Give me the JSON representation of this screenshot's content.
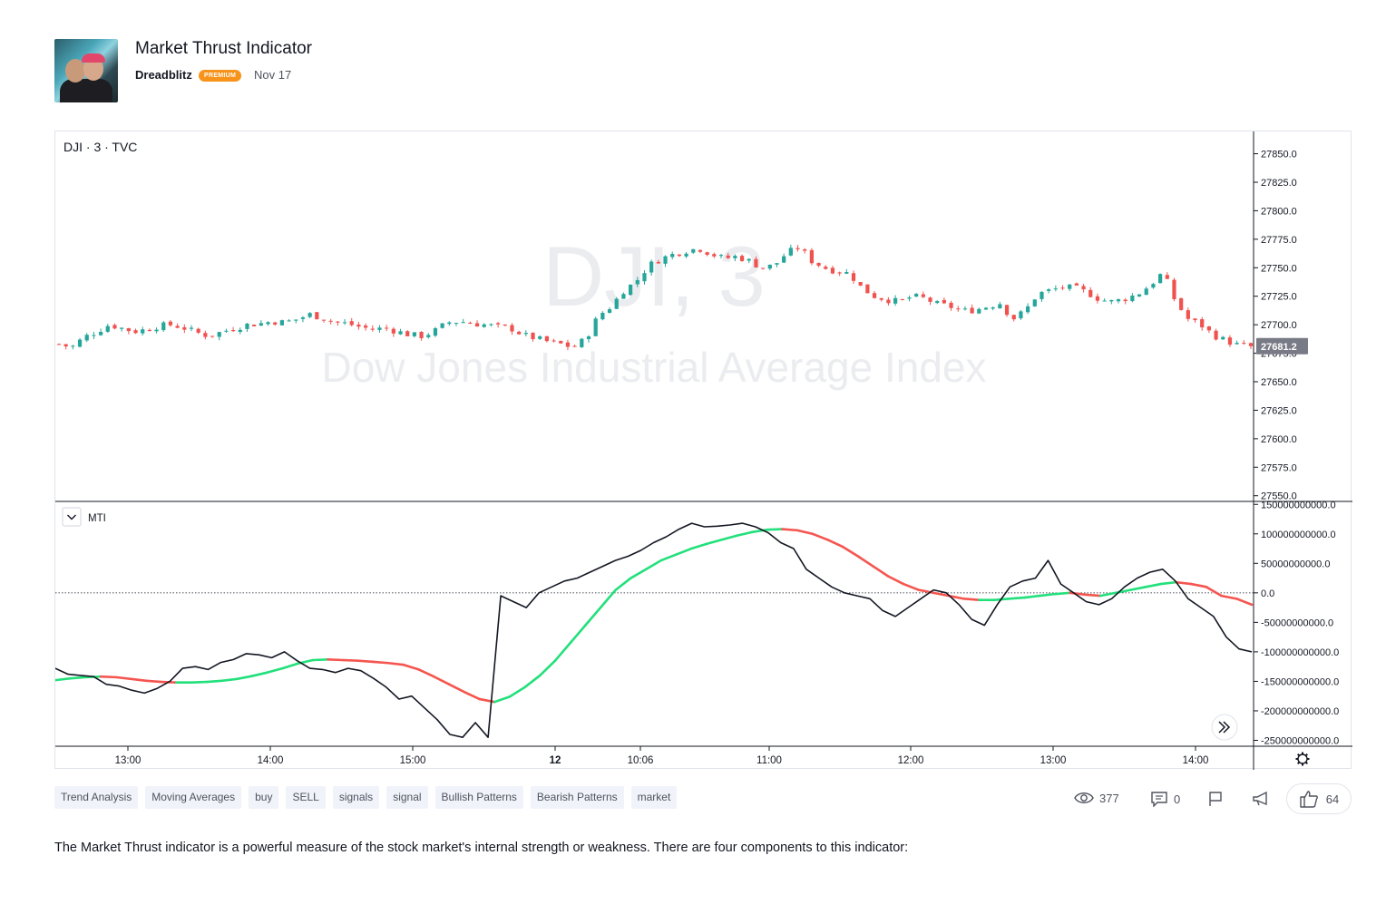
{
  "post": {
    "title": "Market Thrust Indicator",
    "author": "Dreadblitz",
    "badge": "PREMIUM",
    "date": "Nov 17"
  },
  "chart": {
    "symbol_label": "DJI · 3 · TVC",
    "watermark_symbol": "DJI, 3",
    "watermark_name": "Dow Jones Industrial Average Index",
    "indicator_label": "MTI",
    "last_price_label": "27681.2"
  },
  "tags": [
    "Trend Analysis",
    "Moving Averages",
    "buy",
    "SELL",
    "signals",
    "signal",
    "Bullish Patterns",
    "Bearish Patterns",
    "market"
  ],
  "stats": {
    "views": "377",
    "comments": "0",
    "likes": "64"
  },
  "description": "The Market Thrust indicator is a powerful measure of the stock market's internal strength or weakness. There are four components to this indicator:",
  "colors": {
    "up": "#26a69a",
    "down": "#ef5350",
    "ma_up": "#22e07b",
    "ma_down": "#f5554f",
    "mti": "#131722",
    "price_tag": "#787b86"
  },
  "chart_data": [
    {
      "type": "candlestick",
      "title": "DJI · 3 · TVC",
      "y_ticks": [
        "27850.0",
        "27825.0",
        "27800.0",
        "27775.0",
        "27750.0",
        "27725.0",
        "27700.0",
        "27675.0",
        "27650.0",
        "27625.0",
        "27600.0",
        "27575.0",
        "27550.0"
      ],
      "ylim": [
        27545,
        27860
      ],
      "x_ticks": [
        "13:00",
        "14:00",
        "15:00",
        "12",
        "10:06",
        "11:00",
        "12:00",
        "13:00",
        "14:00"
      ],
      "last_value": 27681.2,
      "close_path": [
        27683,
        27680,
        27689,
        27694,
        27700,
        27697,
        27694,
        27696,
        27699,
        27700,
        27697,
        27693,
        27690,
        27694,
        27697,
        27700,
        27701,
        27703,
        27702,
        27705,
        27709,
        27706,
        27702,
        27701,
        27698,
        27696,
        27697,
        27694,
        27691,
        27690,
        27695,
        27702,
        27703,
        27701,
        27700,
        27698,
        27697,
        27691,
        27688,
        27685,
        27683,
        27680,
        27688,
        27708,
        27716,
        27730,
        27738,
        27752,
        27758,
        27762,
        27765,
        27767,
        27762,
        27758,
        27760,
        27756,
        27750,
        27752,
        27763,
        27768,
        27756,
        27750,
        27747,
        27745,
        27732,
        27725,
        27722,
        27720,
        27725,
        27723,
        27718,
        27716,
        27712,
        27713,
        27716,
        27719,
        27705,
        27712,
        27727,
        27730,
        27733,
        27732,
        27728,
        27722,
        27720,
        27723,
        27727,
        27735,
        27746,
        27720,
        27705,
        27700,
        27691,
        27686,
        27682,
        27681.2
      ]
    },
    {
      "type": "line",
      "title": "MTI",
      "y_ticks": [
        "150000000000.0",
        "100000000000.0",
        "50000000000.0",
        "0.0",
        "-50000000000.0",
        "-100000000000.0",
        "-150000000000.0",
        "-200000000000.0",
        "-250000000000.0"
      ],
      "ylim": [
        -260000000000,
        155000000000
      ],
      "series": [
        {
          "role": "mti",
          "values": [
            -128,
            -138,
            -140,
            -142,
            -155,
            -158,
            -165,
            -170,
            -162,
            -150,
            -128,
            -125,
            -130,
            -118,
            -113,
            -103,
            -105,
            -110,
            -100,
            -115,
            -128,
            -130,
            -135,
            -128,
            -132,
            -145,
            -160,
            -180,
            -175,
            -195,
            -215,
            -240,
            -245,
            -220,
            -245,
            -5,
            -15,
            -25,
            0,
            10,
            20,
            25,
            35,
            45,
            55,
            62,
            72,
            85,
            95,
            108,
            118,
            112,
            113,
            115,
            118,
            112,
            102,
            85,
            75,
            40,
            25,
            10,
            0,
            -5,
            -10,
            -30,
            -40,
            -25,
            -10,
            5,
            0,
            -20,
            -45,
            -55,
            -20,
            10,
            20,
            25,
            55,
            15,
            0,
            -15,
            -20,
            -10,
            10,
            25,
            35,
            40,
            20,
            -10,
            -25,
            -40,
            -75,
            -95,
            -100
          ]
        },
        {
          "role": "signal",
          "values": [
            -148,
            -145,
            -143,
            -142,
            -143,
            -146,
            -149,
            -151,
            -152,
            -152,
            -151,
            -149,
            -146,
            -141,
            -135,
            -128,
            -120,
            -114,
            -113,
            -114,
            -115,
            -117,
            -119,
            -122,
            -130,
            -142,
            -155,
            -168,
            -180,
            -185,
            -176,
            -160,
            -140,
            -115,
            -85,
            -55,
            -25,
            5,
            25,
            40,
            55,
            65,
            75,
            83,
            90,
            97,
            103,
            107,
            108,
            106,
            100,
            90,
            78,
            62,
            45,
            28,
            15,
            5,
            0,
            -5,
            -10,
            -12,
            -12,
            -10,
            -8,
            -5,
            -2,
            0,
            -3,
            -5,
            0,
            5,
            10,
            15,
            18,
            15,
            10,
            -5,
            -10,
            -20
          ]
        }
      ]
    }
  ]
}
